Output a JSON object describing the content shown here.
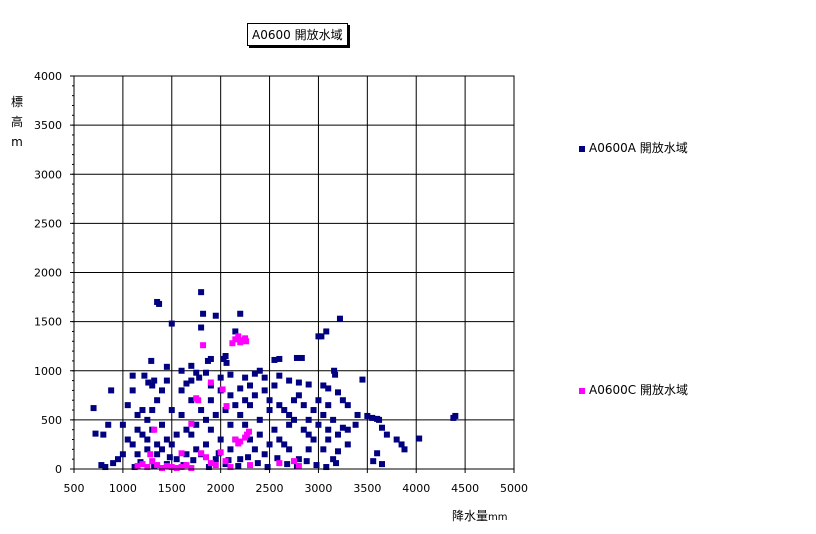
{
  "chart_data": {
    "type": "scatter",
    "title": "A0600 開放水域",
    "xlabel": "降水量",
    "xunit": "mm",
    "ylabel_chars": [
      "標",
      "高",
      "m"
    ],
    "xlim": [
      500,
      5000
    ],
    "ylim": [
      0,
      4000
    ],
    "xticks": [
      500,
      1000,
      1500,
      2000,
      2500,
      3000,
      3500,
      4000,
      4500,
      5000
    ],
    "yticks": [
      0,
      500,
      1000,
      1500,
      2000,
      2500,
      3000,
      3500,
      4000
    ],
    "grid": true,
    "legend_position": "right",
    "series": [
      {
        "name": "A0600A 開放水域",
        "color": "#000080",
        "points": [
          [
            700,
            620
          ],
          [
            720,
            360
          ],
          [
            800,
            350
          ],
          [
            850,
            450
          ],
          [
            880,
            800
          ],
          [
            780,
            40
          ],
          [
            820,
            20
          ],
          [
            900,
            60
          ],
          [
            950,
            100
          ],
          [
            1000,
            150
          ],
          [
            1050,
            300
          ],
          [
            1100,
            250
          ],
          [
            1150,
            400
          ],
          [
            1200,
            350
          ],
          [
            1250,
            500
          ],
          [
            1300,
            600
          ],
          [
            1350,
            700
          ],
          [
            1400,
            800
          ],
          [
            1450,
            900
          ],
          [
            1300,
            850
          ],
          [
            1350,
            1700
          ],
          [
            1370,
            1680
          ],
          [
            1500,
            1480
          ],
          [
            1800,
            1800
          ],
          [
            1820,
            1580
          ],
          [
            1800,
            1440
          ],
          [
            1950,
            1560
          ],
          [
            2200,
            1580
          ],
          [
            2150,
            1400
          ],
          [
            3220,
            1530
          ],
          [
            3080,
            1400
          ],
          [
            3000,
            1350
          ],
          [
            3030,
            1350
          ],
          [
            1290,
            1100
          ],
          [
            1450,
            1040
          ],
          [
            1870,
            1100
          ],
          [
            1900,
            1120
          ],
          [
            2030,
            1120
          ],
          [
            2050,
            1150
          ],
          [
            2060,
            1080
          ],
          [
            2550,
            1110
          ],
          [
            2600,
            1120
          ],
          [
            2780,
            1130
          ],
          [
            2830,
            1130
          ],
          [
            3160,
            1000
          ],
          [
            3170,
            960
          ],
          [
            3450,
            910
          ],
          [
            1100,
            950
          ],
          [
            1220,
            950
          ],
          [
            1260,
            880
          ],
          [
            1320,
            900
          ],
          [
            1650,
            870
          ],
          [
            1700,
            900
          ],
          [
            1780,
            930
          ],
          [
            1850,
            980
          ],
          [
            2000,
            930
          ],
          [
            2100,
            960
          ],
          [
            2250,
            930
          ],
          [
            2350,
            970
          ],
          [
            2400,
            1000
          ],
          [
            2450,
            930
          ],
          [
            2600,
            950
          ],
          [
            2700,
            900
          ],
          [
            2800,
            880
          ],
          [
            2900,
            860
          ],
          [
            3050,
            850
          ],
          [
            3100,
            820
          ],
          [
            3200,
            780
          ],
          [
            3250,
            700
          ],
          [
            3300,
            650
          ],
          [
            3400,
            550
          ],
          [
            3500,
            540
          ],
          [
            3550,
            520
          ],
          [
            3600,
            510
          ],
          [
            3620,
            500
          ],
          [
            3650,
            420
          ],
          [
            3700,
            350
          ],
          [
            3800,
            300
          ],
          [
            3850,
            250
          ],
          [
            3880,
            200
          ],
          [
            4030,
            310
          ],
          [
            4380,
            520
          ],
          [
            4400,
            540
          ],
          [
            3600,
            160
          ],
          [
            3650,
            50
          ],
          [
            3560,
            80
          ],
          [
            3200,
            180
          ],
          [
            3300,
            400
          ],
          [
            3380,
            450
          ],
          [
            1150,
            150
          ],
          [
            1250,
            200
          ],
          [
            1350,
            250
          ],
          [
            1450,
            300
          ],
          [
            1550,
            350
          ],
          [
            1650,
            400
          ],
          [
            1750,
            450
          ],
          [
            1850,
            500
          ],
          [
            1950,
            550
          ],
          [
            2050,
            600
          ],
          [
            2150,
            650
          ],
          [
            2250,
            700
          ],
          [
            2350,
            750
          ],
          [
            2450,
            800
          ],
          [
            2550,
            850
          ],
          [
            2650,
            600
          ],
          [
            2750,
            500
          ],
          [
            2850,
            400
          ],
          [
            2950,
            300
          ],
          [
            3050,
            200
          ],
          [
            3150,
            100
          ],
          [
            1200,
            600
          ],
          [
            1300,
            400
          ],
          [
            1400,
            200
          ],
          [
            1500,
            600
          ],
          [
            1600,
            800
          ],
          [
            1700,
            700
          ],
          [
            1800,
            600
          ],
          [
            1900,
            400
          ],
          [
            2000,
            300
          ],
          [
            2100,
            200
          ],
          [
            2200,
            100
          ],
          [
            2300,
            300
          ],
          [
            2400,
            500
          ],
          [
            2500,
            700
          ],
          [
            2600,
            300
          ],
          [
            2700,
            200
          ],
          [
            2800,
            100
          ],
          [
            2900,
            500
          ],
          [
            3000,
            700
          ],
          [
            3100,
            400
          ],
          [
            1000,
            450
          ],
          [
            1050,
            650
          ],
          [
            1100,
            800
          ],
          [
            1150,
            550
          ],
          [
            1250,
            300
          ],
          [
            1350,
            150
          ],
          [
            1450,
            50
          ],
          [
            1550,
            100
          ],
          [
            1650,
            150
          ],
          [
            1750,
            200
          ],
          [
            1850,
            250
          ],
          [
            1950,
            100
          ],
          [
            2050,
            50
          ],
          [
            2150,
            300
          ],
          [
            2250,
            450
          ],
          [
            2350,
            200
          ],
          [
            2450,
            150
          ],
          [
            2550,
            400
          ],
          [
            2650,
            250
          ],
          [
            2750,
            700
          ],
          [
            2850,
            650
          ],
          [
            2950,
            600
          ],
          [
            3050,
            550
          ],
          [
            3150,
            500
          ],
          [
            1120,
            20
          ],
          [
            1180,
            70
          ],
          [
            1320,
            30
          ],
          [
            1480,
            120
          ],
          [
            1620,
            40
          ],
          [
            1720,
            90
          ],
          [
            1880,
            20
          ],
          [
            1980,
            160
          ],
          [
            2080,
            90
          ],
          [
            2180,
            30
          ],
          [
            2280,
            120
          ],
          [
            2380,
            60
          ],
          [
            2480,
            20
          ],
          [
            2580,
            110
          ],
          [
            2680,
            50
          ],
          [
            2780,
            30
          ],
          [
            2880,
            80
          ],
          [
            2980,
            40
          ],
          [
            3080,
            20
          ],
          [
            3180,
            60
          ],
          [
            1600,
            1000
          ],
          [
            1700,
            1050
          ],
          [
            1750,
            980
          ],
          [
            1900,
            850
          ],
          [
            2100,
            750
          ],
          [
            2200,
            820
          ],
          [
            2300,
            650
          ],
          [
            2500,
            600
          ],
          [
            2700,
            450
          ],
          [
            2900,
            350
          ],
          [
            3100,
            300
          ],
          [
            3300,
            250
          ],
          [
            1400,
            450
          ],
          [
            1500,
            250
          ],
          [
            1600,
            550
          ],
          [
            1700,
            350
          ],
          [
            1800,
            150
          ],
          [
            1900,
            700
          ],
          [
            2000,
            800
          ],
          [
            2100,
            450
          ],
          [
            2200,
            550
          ],
          [
            2300,
            850
          ],
          [
            2400,
            350
          ],
          [
            2500,
            250
          ],
          [
            2600,
            650
          ],
          [
            2700,
            550
          ],
          [
            2800,
            750
          ],
          [
            2900,
            200
          ],
          [
            3000,
            450
          ],
          [
            3100,
            650
          ],
          [
            3200,
            350
          ],
          [
            3250,
            420
          ]
        ]
      },
      {
        "name": "A0600C 開放水域",
        "color": "#ff00ff",
        "points": [
          [
            1820,
            1260
          ],
          [
            2120,
            1280
          ],
          [
            2150,
            1320
          ],
          [
            2180,
            1350
          ],
          [
            2200,
            1290
          ],
          [
            2230,
            1310
          ],
          [
            2250,
            1330
          ],
          [
            2260,
            1300
          ],
          [
            1750,
            720
          ],
          [
            1770,
            700
          ],
          [
            1900,
            880
          ],
          [
            2020,
            810
          ],
          [
            2060,
            640
          ],
          [
            2150,
            300
          ],
          [
            2200,
            280
          ],
          [
            2250,
            320
          ],
          [
            2270,
            350
          ],
          [
            2290,
            380
          ],
          [
            2180,
            260
          ],
          [
            1150,
            30
          ],
          [
            1200,
            50
          ],
          [
            1250,
            20
          ],
          [
            1300,
            80
          ],
          [
            1350,
            40
          ],
          [
            1400,
            10
          ],
          [
            1450,
            30
          ],
          [
            1500,
            20
          ],
          [
            1550,
            10
          ],
          [
            1600,
            20
          ],
          [
            1650,
            40
          ],
          [
            1700,
            10
          ],
          [
            1800,
            160
          ],
          [
            1850,
            120
          ],
          [
            1950,
            40
          ],
          [
            2000,
            170
          ],
          [
            2050,
            80
          ],
          [
            2100,
            20
          ],
          [
            2300,
            40
          ],
          [
            2600,
            60
          ],
          [
            2750,
            80
          ],
          [
            2800,
            30
          ],
          [
            1280,
            150
          ],
          [
            1320,
            400
          ],
          [
            1600,
            160
          ],
          [
            1700,
            460
          ],
          [
            1900,
            60
          ]
        ]
      }
    ]
  }
}
